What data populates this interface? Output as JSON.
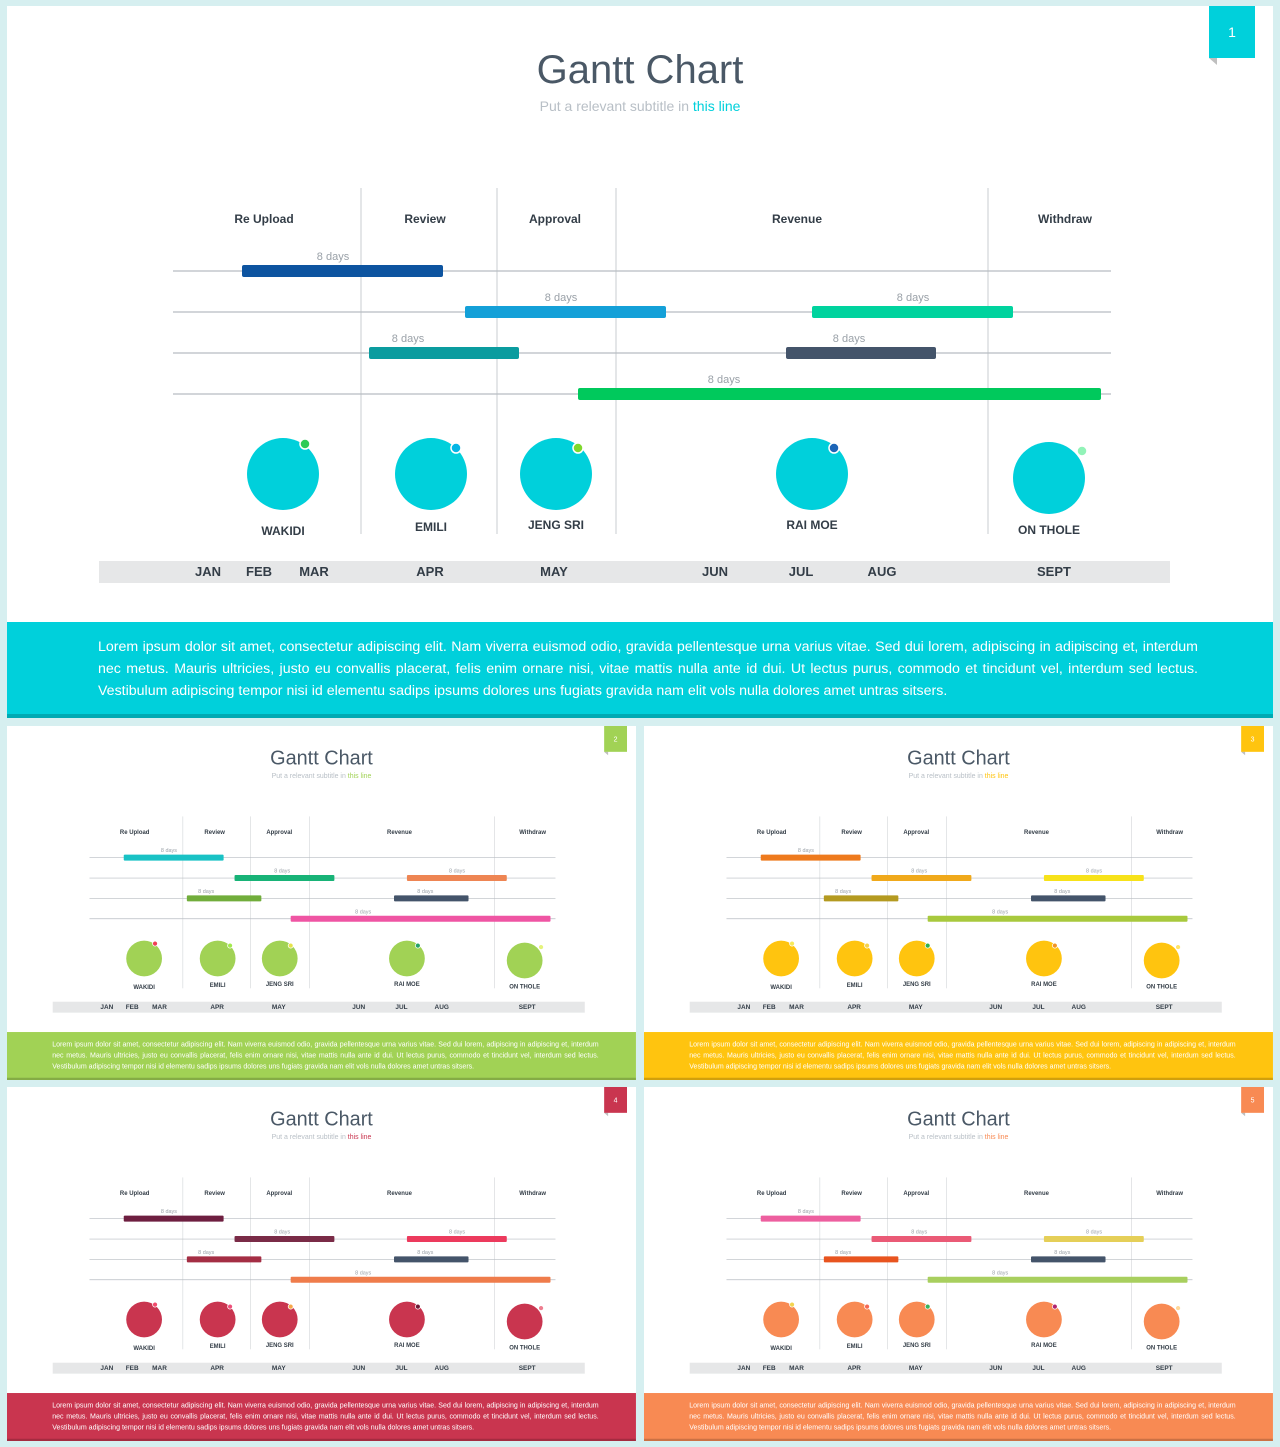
{
  "slides": [
    {
      "page": "1",
      "title": "Gantt Chart",
      "subtitle_pre": "Put a relevant subtitle in ",
      "subtitle_link": "this line",
      "colors": {
        "accent": "#00d0db",
        "bars": [
          "#0d54a0",
          "#14a0d8",
          "#0b9c9f",
          "#00d39e",
          "#44546a",
          "#00c95c"
        ],
        "circle": "#00d0db",
        "dots": [
          "#2ecb57",
          "#03b6e5",
          "#7fd82d",
          "#1c65b7",
          "#92f3b8"
        ]
      },
      "body": "Lorem ipsum dolor sit amet, consectetur adipiscing elit. Nam viverra euismod odio, gravida pellentesque urna varius vitae. Sed dui lorem, adipiscing in adipiscing et, interdum nec metus. Mauris ultricies, justo eu convallis placerat, felis enim ornare nisi, vitae mattis nulla ante id dui. Ut lectus purus, commodo et tincidunt vel, interdum sed lectus. Vestibulum adipiscing tempor nisi id elementu sadips ipsums dolores uns fugiats gravida nam elit vols nulla dolores amet untras sitsers."
    },
    {
      "page": "2",
      "title": "Gantt Chart",
      "subtitle_pre": "Put a relevant subtitle in ",
      "subtitle_link": "this line",
      "colors": {
        "accent": "#a1d255",
        "bars": [
          "#19c2c5",
          "#18b377",
          "#71ad3b",
          "#ee8553",
          "#44546a",
          "#ef55a3"
        ],
        "circle": "#a1d255",
        "dots": [
          "#ef3f56",
          "#a2ea4d",
          "#e5e34a",
          "#26a266",
          "#e5f37d"
        ]
      },
      "body": "Lorem ipsum dolor sit amet, consectetur adipiscing elit. Nam viverra euismod odio, gravida pellentesque urna varius vitae. Sed dui lorem, adipiscing in adipiscing et, interdum nec metus. Mauris ultricies, justo eu convallis placerat, felis enim ornare nisi, vitae mattis nulla ante id dui. Ut lectus purus, commodo et tincidunt vel, interdum sed lectus. Vestibulum adipiscing tempor nisi id elementu sadips ipsums dolores uns fugiats gravida nam elit vols nulla dolores amet untras sitsers."
    },
    {
      "page": "3",
      "title": "Gantt Chart",
      "subtitle_pre": "Put a relevant subtitle in ",
      "subtitle_link": "this line",
      "colors": {
        "accent": "#ffc40f",
        "bars": [
          "#ee7a1d",
          "#f0a91b",
          "#b49a20",
          "#f7e21a",
          "#44546a",
          "#a8c93d"
        ],
        "circle": "#ffc40f",
        "dots": [
          "#f8e95a",
          "#f5d24c",
          "#31b04a",
          "#f19425",
          "#ffe46a"
        ]
      },
      "body": "Lorem ipsum dolor sit amet, consectetur adipiscing elit. Nam viverra euismod odio, gravida pellentesque urna varius vitae. Sed dui lorem, adipiscing in adipiscing et, interdum nec metus. Mauris ultricies, justo eu convallis placerat, felis enim ornare nisi, vitae mattis nulla ante id dui. Ut lectus purus, commodo et tincidunt vel, interdum sed lectus. Vestibulum adipiscing tempor nisi id elementu sadips ipsums dolores uns fugiats gravida nam elit vols nulla dolores amet untras sitsers."
    },
    {
      "page": "4",
      "title": "Gantt Chart",
      "subtitle_pre": "Put a relevant subtitle in ",
      "subtitle_link": "this line",
      "colors": {
        "accent": "#c9354f",
        "bars": [
          "#6e1f40",
          "#7a2b47",
          "#a42e44",
          "#ec3a5d",
          "#44546a",
          "#ef7c4b"
        ],
        "circle": "#c9354f",
        "dots": [
          "#f04a6b",
          "#ee4f7a",
          "#f7a64a",
          "#6f1a36",
          "#ee7e90"
        ]
      },
      "body": "Lorem ipsum dolor sit amet, consectetur adipiscing elit. Nam viverra euismod odio, gravida pellentesque urna varius vitae. Sed dui lorem, adipiscing in adipiscing et, interdum nec metus. Mauris ultricies, justo eu convallis placerat, felis enim ornare nisi, vitae mattis nulla ante id dui. Ut lectus purus, commodo et tincidunt vel, interdum sed lectus. Vestibulum adipiscing tempor nisi id elementu sadips ipsums dolores uns fugiats gravida nam elit vols nulla dolores amet untras sitsers."
    },
    {
      "page": "5",
      "title": "Gantt Chart",
      "subtitle_pre": "Put a relevant subtitle in ",
      "subtitle_link": "this line",
      "colors": {
        "accent": "#f88a53",
        "bars": [
          "#ed5f9f",
          "#ea5a76",
          "#e8541f",
          "#e5cf58",
          "#44546a",
          "#a8cf5e"
        ],
        "circle": "#f88a53",
        "dots": [
          "#f3d44f",
          "#f46a55",
          "#39b25a",
          "#b1246f",
          "#ffd89a"
        ]
      },
      "body": "Lorem ipsum dolor sit amet, consectetur adipiscing elit. Nam viverra euismod odio, gravida pellentesque urna varius vitae. Sed dui lorem, adipiscing in adipiscing et, interdum nec metus. Mauris ultricies, justo eu convallis placerat, felis enim ornare nisi, vitae mattis nulla ante id dui. Ut lectus purus, commodo et tincidunt vel, interdum sed lectus. Vestibulum adipiscing tempor nisi id elementu sadips ipsums dolores uns fugiats gravida nam elit vols nulla dolores amet untras sitsers."
    }
  ],
  "chart_data": {
    "type": "gantt",
    "phases": [
      "Re Upload",
      "Review",
      "Approval",
      "Revenue",
      "Withdraw"
    ],
    "months": [
      "JAN",
      "FEB",
      "MAR",
      "APR",
      "MAY",
      "JUN",
      "JUL",
      "AUG",
      "SEPT"
    ],
    "people": [
      "WAKIDI",
      "EMILI",
      "JENG SRI",
      "RAI MOE",
      "ON THOLE"
    ],
    "tasks": [
      {
        "row": 1,
        "label": "8 days"
      },
      {
        "row": 2,
        "label": "8 days"
      },
      {
        "row": 3,
        "label": "8 days"
      },
      {
        "row": 2,
        "label": "8 days"
      },
      {
        "row": 3,
        "label": "8 days"
      },
      {
        "row": 4,
        "label": "8 days"
      }
    ]
  }
}
